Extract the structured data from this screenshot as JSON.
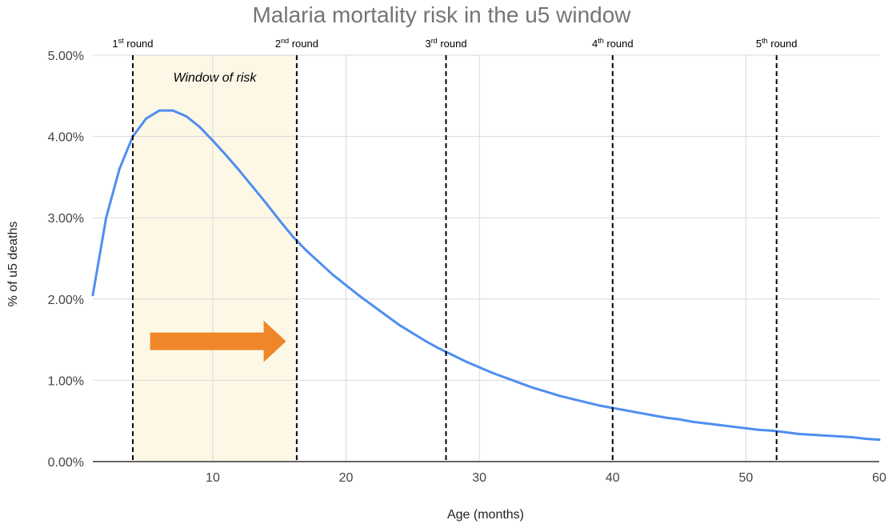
{
  "chart_data": {
    "type": "line",
    "title": "Malaria mortality risk in the u5 window",
    "xlabel": "Age (months)",
    "ylabel": "% of u5 deaths",
    "xlim": [
      1,
      60
    ],
    "ylim": [
      0,
      5
    ],
    "x_ticks": [
      10,
      20,
      30,
      40,
      50,
      60
    ],
    "x_tick_labels": [
      "10",
      "20",
      "30",
      "40",
      "50",
      "60"
    ],
    "y_ticks": [
      0,
      1,
      2,
      3,
      4,
      5
    ],
    "y_tick_labels": [
      "0.00%",
      "1.00%",
      "2.00%",
      "3.00%",
      "4.00%",
      "5.00%"
    ],
    "grid": true,
    "series": [
      {
        "name": "% of u5 deaths",
        "color": "#4f8ef0",
        "x": [
          1,
          2,
          3,
          4,
          5,
          6,
          7,
          8,
          9,
          10,
          11,
          12,
          13,
          14,
          15,
          16,
          17,
          18,
          19,
          20,
          21,
          22,
          23,
          24,
          25,
          26,
          27,
          28,
          29,
          30,
          31,
          32,
          33,
          34,
          35,
          36,
          37,
          38,
          39,
          40,
          41,
          42,
          43,
          44,
          45,
          46,
          47,
          48,
          49,
          50,
          51,
          52,
          53,
          54,
          55,
          56,
          57,
          58,
          59,
          60
        ],
        "values": [
          2.05,
          3.0,
          3.6,
          4.0,
          4.22,
          4.32,
          4.32,
          4.25,
          4.12,
          3.95,
          3.77,
          3.58,
          3.38,
          3.18,
          2.97,
          2.77,
          2.6,
          2.45,
          2.3,
          2.17,
          2.04,
          1.92,
          1.8,
          1.68,
          1.58,
          1.48,
          1.39,
          1.31,
          1.23,
          1.16,
          1.09,
          1.03,
          0.97,
          0.91,
          0.86,
          0.81,
          0.77,
          0.73,
          0.69,
          0.66,
          0.63,
          0.6,
          0.57,
          0.54,
          0.52,
          0.49,
          0.47,
          0.45,
          0.43,
          0.41,
          0.39,
          0.38,
          0.36,
          0.34,
          0.33,
          0.32,
          0.31,
          0.3,
          0.28,
          0.27
        ]
      }
    ],
    "rounds": [
      {
        "x": 4.0,
        "label": "1",
        "suffix": "st",
        "word": "round"
      },
      {
        "x": 16.3,
        "label": "2",
        "suffix": "nd",
        "word": "round"
      },
      {
        "x": 27.5,
        "label": "3",
        "suffix": "rd",
        "word": "round"
      },
      {
        "x": 40.0,
        "label": "4",
        "suffix": "th",
        "word": "round"
      },
      {
        "x": 52.3,
        "label": "5",
        "suffix": "th",
        "word": "round"
      }
    ],
    "window": {
      "x_start": 4.0,
      "x_end": 16.3,
      "label": "Window of risk",
      "fill": "#fdf8e6"
    },
    "arrow": {
      "x_start": 5.3,
      "x_end": 15.5,
      "y": 1.48,
      "color": "#f0862a"
    },
    "colors": {
      "line": "#4f8ef0",
      "grid": "#d9d9d9",
      "axis": "#333333",
      "round_line": "#000000"
    }
  }
}
